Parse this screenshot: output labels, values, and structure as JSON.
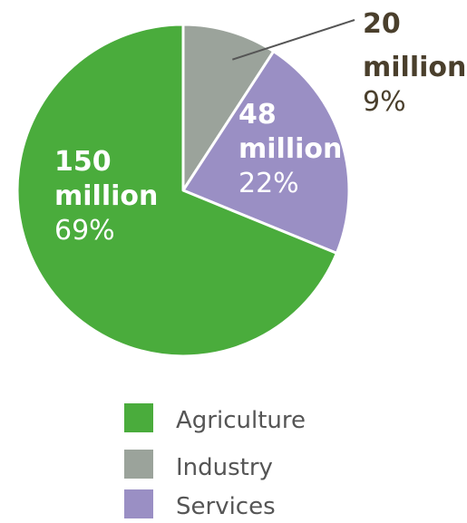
{
  "chart_data": {
    "type": "pie",
    "slices": [
      {
        "name": "Agriculture",
        "value": 150,
        "value_label": "150",
        "unit": "million",
        "percent": "69%",
        "color": "#4aac3c",
        "label_color": "#ffffff"
      },
      {
        "name": "Industry",
        "value": 20,
        "value_label": "20",
        "unit": "million",
        "percent": "9%",
        "color": "#9ba39b",
        "label_color": "#4a3f2c"
      },
      {
        "name": "Services",
        "value": 48,
        "value_label": "48",
        "unit": "million",
        "percent": "22%",
        "color": "#9a8fc4",
        "label_color": "#ffffff"
      }
    ],
    "legend_position": "bottom",
    "start_angle_degrees": 0,
    "direction": "clockwise",
    "border_color": "#ffffff"
  }
}
